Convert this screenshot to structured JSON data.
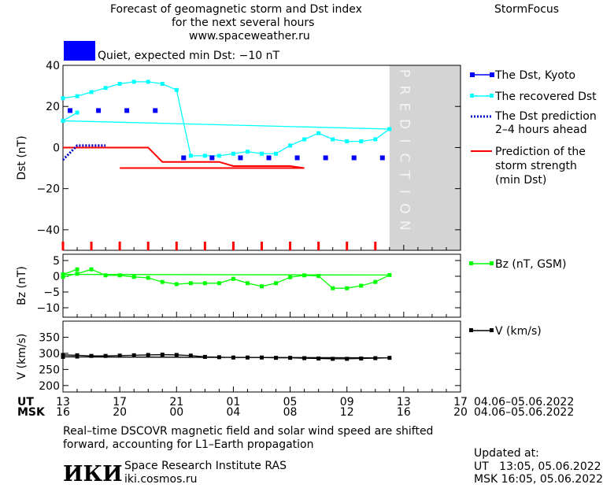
{
  "header": {
    "title_line1": "Forecast of geomagnetic storm and Dst index",
    "title_line2": "for the next several hours",
    "url": "www.spaceweather.ru",
    "brand": "StormFocus"
  },
  "status": {
    "text": "Quiet, expected min Dst: −10 nT",
    "color": "#0000ff"
  },
  "prediction_label": "PREDICTION",
  "axis": {
    "ut_label": "UT",
    "msk_label": "MSK",
    "ut_ticks": [
      "13",
      "17",
      "21",
      "01",
      "05",
      "09",
      "13",
      "17"
    ],
    "msk_ticks": [
      "16",
      "20",
      "00",
      "04",
      "08",
      "12",
      "16",
      "20"
    ],
    "date_range_ut": "04.06–05.06.2022",
    "date_range_msk": "04.06–05.06.2022"
  },
  "chart_data": [
    {
      "type": "line",
      "ylabel": "Dst (nT)",
      "ylim": [
        -50,
        40
      ],
      "yticks": [
        "40",
        "20",
        "0",
        "−20",
        "−40"
      ],
      "x_hours_ut": [
        13,
        14,
        15,
        16,
        17,
        18,
        19,
        20,
        21,
        22,
        23,
        0,
        1,
        2,
        3,
        4,
        5,
        6,
        7,
        8,
        9,
        10,
        11,
        12,
        13,
        14,
        15,
        16,
        17
      ],
      "series": [
        {
          "name": "The Dst, Kyoto",
          "color": "#0000ff",
          "points": [
            [
              13.5,
              18
            ],
            [
              15.5,
              18
            ],
            [
              17.5,
              18
            ],
            [
              19.5,
              18
            ],
            [
              21.5,
              -5
            ],
            [
              23.5,
              -5
            ],
            [
              1.5,
              -5
            ],
            [
              3.5,
              -5
            ],
            [
              5.5,
              -5
            ],
            [
              7.5,
              -5
            ],
            [
              9.5,
              -5
            ],
            [
              11.5,
              -5
            ]
          ]
        },
        {
          "name": "The recovered Dst",
          "color": "#00ffff",
          "points": [
            [
              13,
              24
            ],
            [
              14,
              25
            ],
            [
              15,
              27
            ],
            [
              16,
              29
            ],
            [
              17,
              31
            ],
            [
              18,
              32
            ],
            [
              19,
              32
            ],
            [
              20,
              31
            ],
            [
              21,
              28
            ],
            [
              22,
              -4
            ],
            [
              23,
              -4
            ],
            [
              0,
              -4
            ],
            [
              1,
              -3
            ],
            [
              2,
              -2
            ],
            [
              3,
              -3
            ],
            [
              4,
              -3
            ],
            [
              5,
              1
            ],
            [
              6,
              4
            ],
            [
              7,
              7
            ],
            [
              8,
              4
            ],
            [
              9,
              3
            ],
            [
              10,
              3
            ],
            [
              11,
              4
            ],
            [
              12,
              9
            ],
            [
              13,
              13
            ],
            [
              14,
              17
            ]
          ]
        },
        {
          "name": "The Dst prediction 2–4 hours ahead",
          "color": "#0000cc",
          "points": [
            [
              13,
              -6
            ],
            [
              14,
              1
            ],
            [
              15,
              1
            ],
            [
              16,
              1
            ]
          ]
        },
        {
          "name": "Prediction of the storm strength (min Dst)",
          "color": "#ff0000",
          "points": [
            [
              13,
              0
            ],
            [
              19,
              0
            ],
            [
              20,
              -7
            ],
            [
              21,
              -7
            ],
            [
              22,
              -7
            ],
            [
              23,
              -7
            ],
            [
              0,
              -7
            ],
            [
              1,
              -9
            ],
            [
              5,
              -9
            ],
            [
              6,
              -10
            ],
            [
              17,
              -10
            ]
          ]
        }
      ]
    },
    {
      "type": "line",
      "ylabel": "Bz (nT)",
      "ylim": [
        -13,
        7
      ],
      "yticks": [
        "5",
        "0",
        "−5",
        "−10"
      ],
      "series": [
        {
          "name": "Bz (nT, GSM)",
          "color": "#00ff00",
          "points": [
            [
              13,
              -0.2
            ],
            [
              14,
              0.8
            ],
            [
              15,
              2.2
            ],
            [
              16,
              0.3
            ],
            [
              17,
              0.3
            ],
            [
              18,
              -0.2
            ],
            [
              19,
              -0.5
            ],
            [
              20,
              -1.8
            ],
            [
              21,
              -2.5
            ],
            [
              22,
              -2.2
            ],
            [
              23,
              -2.2
            ],
            [
              0,
              -2.2
            ],
            [
              1,
              -0.8
            ],
            [
              2,
              -2.2
            ],
            [
              3,
              -3.2
            ],
            [
              4,
              -2.2
            ],
            [
              5,
              -0.3
            ],
            [
              6,
              0.3
            ],
            [
              7,
              0.1
            ],
            [
              8,
              -3.8
            ],
            [
              9,
              -3.8
            ],
            [
              10,
              -3
            ],
            [
              11,
              -1.8
            ],
            [
              12,
              0.4
            ],
            [
              13,
              0.6
            ],
            [
              14,
              2.2
            ]
          ]
        }
      ]
    },
    {
      "type": "line",
      "ylabel": "V (km/s)",
      "ylim": [
        180,
        400
      ],
      "yticks": [
        "350",
        "300",
        "250",
        "200"
      ],
      "series": [
        {
          "name": "V (km/s)",
          "color": "#000000",
          "points": [
            [
              13,
              295
            ],
            [
              14,
              294
            ],
            [
              15,
              292
            ],
            [
              16,
              292
            ],
            [
              17,
              293
            ],
            [
              18,
              294
            ],
            [
              19,
              295
            ],
            [
              20,
              296
            ],
            [
              21,
              295
            ],
            [
              22,
              293
            ],
            [
              23,
              289
            ],
            [
              0,
              288
            ],
            [
              1,
              287
            ],
            [
              2,
              287
            ],
            [
              3,
              287
            ],
            [
              4,
              286
            ],
            [
              5,
              286
            ],
            [
              6,
              285
            ],
            [
              7,
              284
            ],
            [
              8,
              283
            ],
            [
              9,
              283
            ],
            [
              10,
              284
            ],
            [
              11,
              285
            ],
            [
              12,
              286
            ],
            [
              13,
              289
            ],
            [
              14,
              290
            ]
          ]
        }
      ]
    }
  ],
  "legend": {
    "dst_kyoto": "The Dst, Kyoto",
    "recovered": "The recovered Dst",
    "prediction_line1": "The Dst prediction",
    "prediction_line2": "2–4 hours ahead",
    "storm_line1": "Prediction of the",
    "storm_line2": "storm strength",
    "storm_line3": "(min Dst)",
    "bz": "Bz (nT, GSM)",
    "v": "V (km/s)"
  },
  "footer": {
    "note_line1": "Real–time DSCOVR magnetic field and solar wind speed are shifted",
    "note_line2": "forward, accounting for L1–Earth propagation",
    "logo": "ИКИ",
    "institute": "Space Research Institute RAS",
    "site": "iki.cosmos.ru",
    "updated_label": "Updated at:",
    "updated_ut": "UT   13:05, 05.06.2022",
    "updated_msk": "MSK 16:05, 05.06.2022"
  }
}
